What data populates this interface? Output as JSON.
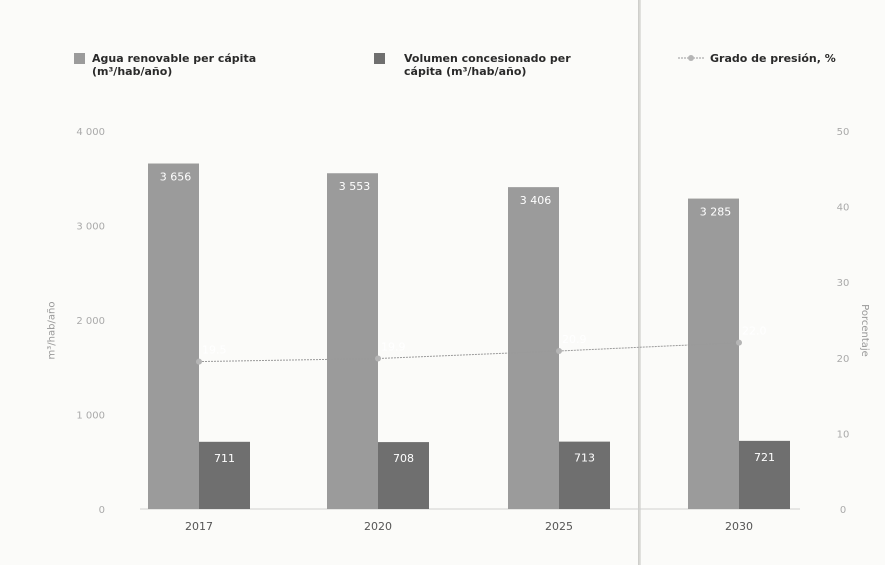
{
  "chart_data": {
    "type": "bar",
    "categories": [
      "2017",
      "2020",
      "2025",
      "2030"
    ],
    "series": [
      {
        "name": "Agua renovable per cápita (m³/hab/año)",
        "values": [
          3656,
          3553,
          3406,
          3285
        ],
        "labels": [
          "3 656",
          "3 553",
          "3 406",
          "3 285"
        ],
        "color": "#9b9b9b",
        "axis": "left"
      },
      {
        "name": "Volumen concesionado per cápita (m³/hab/año)",
        "values": [
          711,
          708,
          713,
          721
        ],
        "labels": [
          "711",
          "708",
          "713",
          "721"
        ],
        "color": "#6f6f6f",
        "axis": "left"
      },
      {
        "name": "Grado de presión, %",
        "type": "line",
        "values": [
          19.5,
          19.9,
          20.9,
          22.0
        ],
        "labels": [
          "19.5",
          "19.9",
          "20.9",
          "22.0"
        ],
        "color": "#9a9a9a",
        "axis": "right"
      }
    ],
    "ylabel": "m³/hab/año",
    "y2label": "Porcentaje",
    "ylim": [
      0,
      4000
    ],
    "y2lim": [
      0,
      50
    ],
    "yticks": [
      "0",
      "1 000",
      "2 000",
      "3 000",
      "4 000"
    ],
    "y2ticks": [
      "0",
      "10",
      "20",
      "30",
      "40",
      "50"
    ],
    "grid": false,
    "legend": "top"
  }
}
